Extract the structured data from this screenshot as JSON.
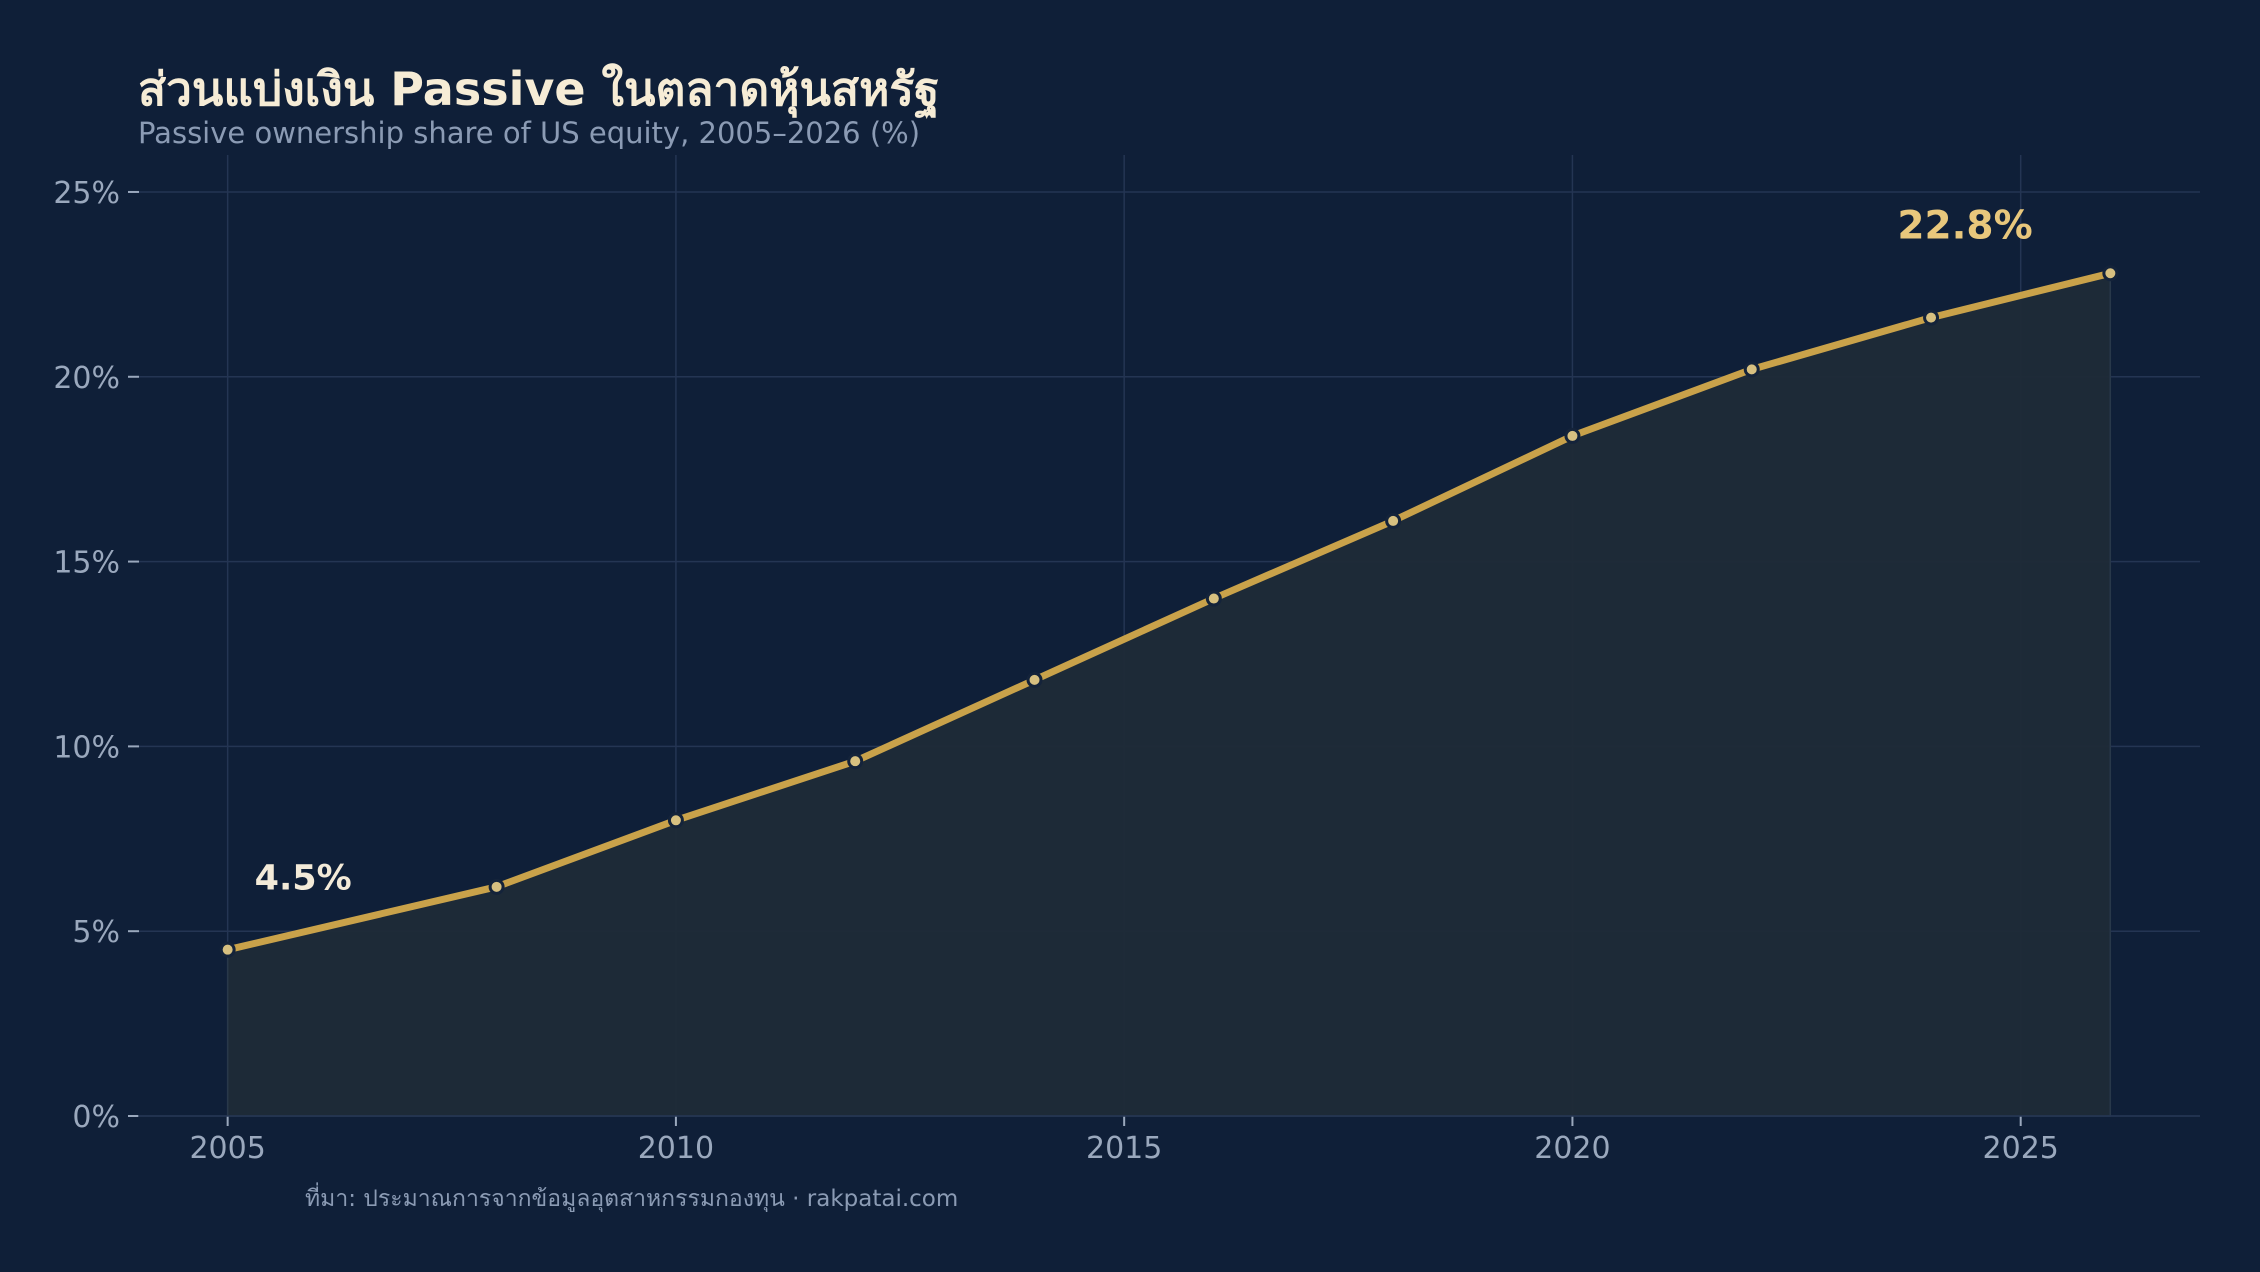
{
  "chart_data": {
    "type": "area",
    "title": "ส่วนแบ่งเงิน Passive ในตลาดหุ้นสหรัฐ",
    "subtitle": "Passive ownership share of US equity, 2005–2026 (%)",
    "xlabel": "",
    "ylabel": "",
    "x": [
      2005,
      2008,
      2010,
      2012,
      2014,
      2016,
      2018,
      2020,
      2022,
      2024,
      2026
    ],
    "series": [
      {
        "values": [
          4.5,
          6.2,
          8.0,
          9.6,
          11.8,
          14.0,
          16.1,
          18.4,
          20.2,
          21.6,
          22.8
        ]
      }
    ],
    "xlim": [
      2004,
      2027
    ],
    "ylim": [
      0,
      26
    ],
    "x_ticks": [
      2005,
      2010,
      2015,
      2020,
      2025
    ],
    "x_tick_labels": [
      "2005",
      "2010",
      "2015",
      "2020",
      "2025"
    ],
    "y_ticks": [
      0,
      5,
      10,
      15,
      20,
      25
    ],
    "y_tick_labels": [
      "0%",
      "5%",
      "10%",
      "15%",
      "20%",
      "25%"
    ],
    "annotations": [
      {
        "text": "4.5%",
        "x": 2005,
        "y": 4.5
      },
      {
        "text": "22.8%",
        "x": 2026,
        "y": 22.8
      }
    ],
    "grid": true,
    "colors": {
      "line": "#c9a24a",
      "area": "#1f2b37",
      "marker": "#d7c080",
      "background": "#0f1f38"
    }
  },
  "source_text": "ที่มา: ประมาณการจากข้อมูลอุตสาหกรรมกองทุน  ·  rakpatai.com"
}
